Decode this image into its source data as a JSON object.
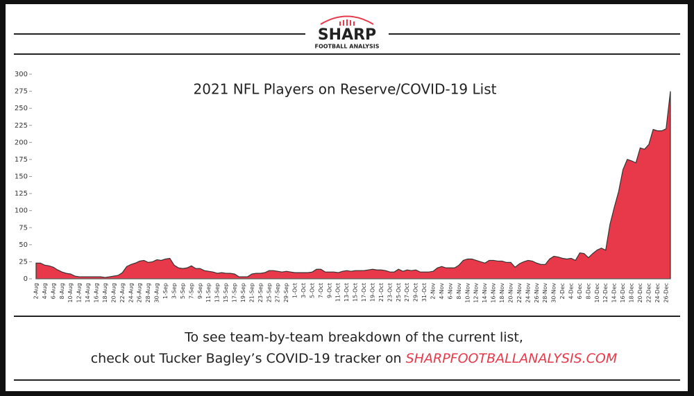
{
  "header": {
    "brand": "SHARP",
    "tagline": "FOOTBALL ANALYSIS"
  },
  "footer": {
    "line1": "To see team-by-team breakdown of the current list,",
    "line2": "check out Tucker Bagley’s COVID-19 tracker on",
    "link": "SHARPFOOTBALLANALYSIS.COM"
  },
  "chart_data": {
    "type": "area",
    "title": "2021 NFL Players on Reserve/COVID-19 List",
    "color": "#e8394a",
    "categories": [
      "2-Aug",
      null,
      "4-Aug",
      null,
      "6-Aug",
      null,
      "8-Aug",
      null,
      "10-Aug",
      null,
      "12-Aug",
      null,
      "14-Aug",
      null,
      "16-Aug",
      null,
      "18-Aug",
      null,
      "20-Aug",
      null,
      "22-Aug",
      null,
      "24-Aug",
      null,
      "26-Aug",
      null,
      "28-Aug",
      null,
      "30-Aug",
      null,
      "1-Sep",
      null,
      "3-Sep",
      null,
      "5-Sep",
      null,
      "7-Sep",
      null,
      "9-Sep",
      null,
      "11-Sep",
      null,
      "13-Sep",
      null,
      "15-Sep",
      null,
      "17-Sep",
      null,
      "19-Sep",
      null,
      "21-Sep",
      null,
      "23-Sep",
      null,
      "25-Sep",
      null,
      "27-Sep",
      null,
      "29-Sep",
      null,
      "1-Oct",
      null,
      "3-Oct",
      null,
      "5-Oct",
      null,
      "7-Oct",
      null,
      "9-Oct",
      null,
      "11-Oct",
      null,
      "13-Oct",
      null,
      "15-Oct",
      null,
      "17-Oct",
      null,
      "19-Oct",
      null,
      "21-Oct",
      null,
      "23-Oct",
      null,
      "25-Oct",
      null,
      "27-Oct",
      null,
      "29-Oct",
      null,
      "31-Oct",
      null,
      "2-Nov",
      null,
      "4-Nov",
      null,
      "6-Nov",
      null,
      "8-Nov",
      null,
      "10-Nov",
      null,
      "12-Nov",
      null,
      "14-Nov",
      null,
      "16-Nov",
      null,
      "18-Nov",
      null,
      "20-Nov",
      null,
      "22-Nov",
      null,
      "24-Nov",
      null,
      "26-Nov",
      null,
      "28-Nov",
      null,
      "30-Nov",
      null,
      "2-Dec",
      null,
      "4-Dec",
      null,
      "6-Dec",
      null,
      "8-Dec",
      null,
      "10-Dec",
      null,
      "12-Dec",
      null,
      "14-Dec",
      null,
      "16-Dec",
      null,
      "18-Dec",
      null,
      "20-Dec",
      null,
      "22-Dec",
      null,
      "24-Dec",
      null,
      "26-Dec",
      null
    ],
    "values": [
      23,
      23,
      20,
      19,
      17,
      13,
      10,
      8,
      7,
      4,
      3,
      3,
      3,
      3,
      3,
      3,
      2,
      3,
      4,
      5,
      9,
      18,
      21,
      23,
      26,
      27,
      24,
      25,
      28,
      27,
      29,
      30,
      20,
      16,
      15,
      16,
      19,
      15,
      15,
      12,
      11,
      10,
      8,
      9,
      8,
      8,
      7,
      3,
      3,
      3,
      7,
      8,
      8,
      9,
      12,
      12,
      11,
      10,
      11,
      10,
      9,
      9,
      9,
      9,
      10,
      14,
      14,
      10,
      10,
      10,
      9,
      11,
      12,
      11,
      12,
      12,
      12,
      13,
      14,
      13,
      13,
      12,
      10,
      10,
      14,
      11,
      13,
      12,
      13,
      10,
      10,
      10,
      11,
      16,
      18,
      16,
      16,
      16,
      20,
      27,
      29,
      29,
      27,
      25,
      23,
      27,
      27,
      26,
      26,
      24,
      24,
      17,
      22,
      25,
      27,
      26,
      23,
      21,
      21,
      29,
      33,
      32,
      30,
      29,
      30,
      27,
      38,
      37,
      31,
      37,
      42,
      45,
      42,
      80,
      105,
      128,
      160,
      175,
      173,
      170,
      192,
      190,
      197,
      219,
      217,
      217,
      220,
      275
    ],
    "ylim": [
      0,
      300
    ],
    "yticks": [
      0,
      25,
      50,
      75,
      100,
      125,
      150,
      175,
      200,
      225,
      250,
      275,
      300
    ]
  }
}
